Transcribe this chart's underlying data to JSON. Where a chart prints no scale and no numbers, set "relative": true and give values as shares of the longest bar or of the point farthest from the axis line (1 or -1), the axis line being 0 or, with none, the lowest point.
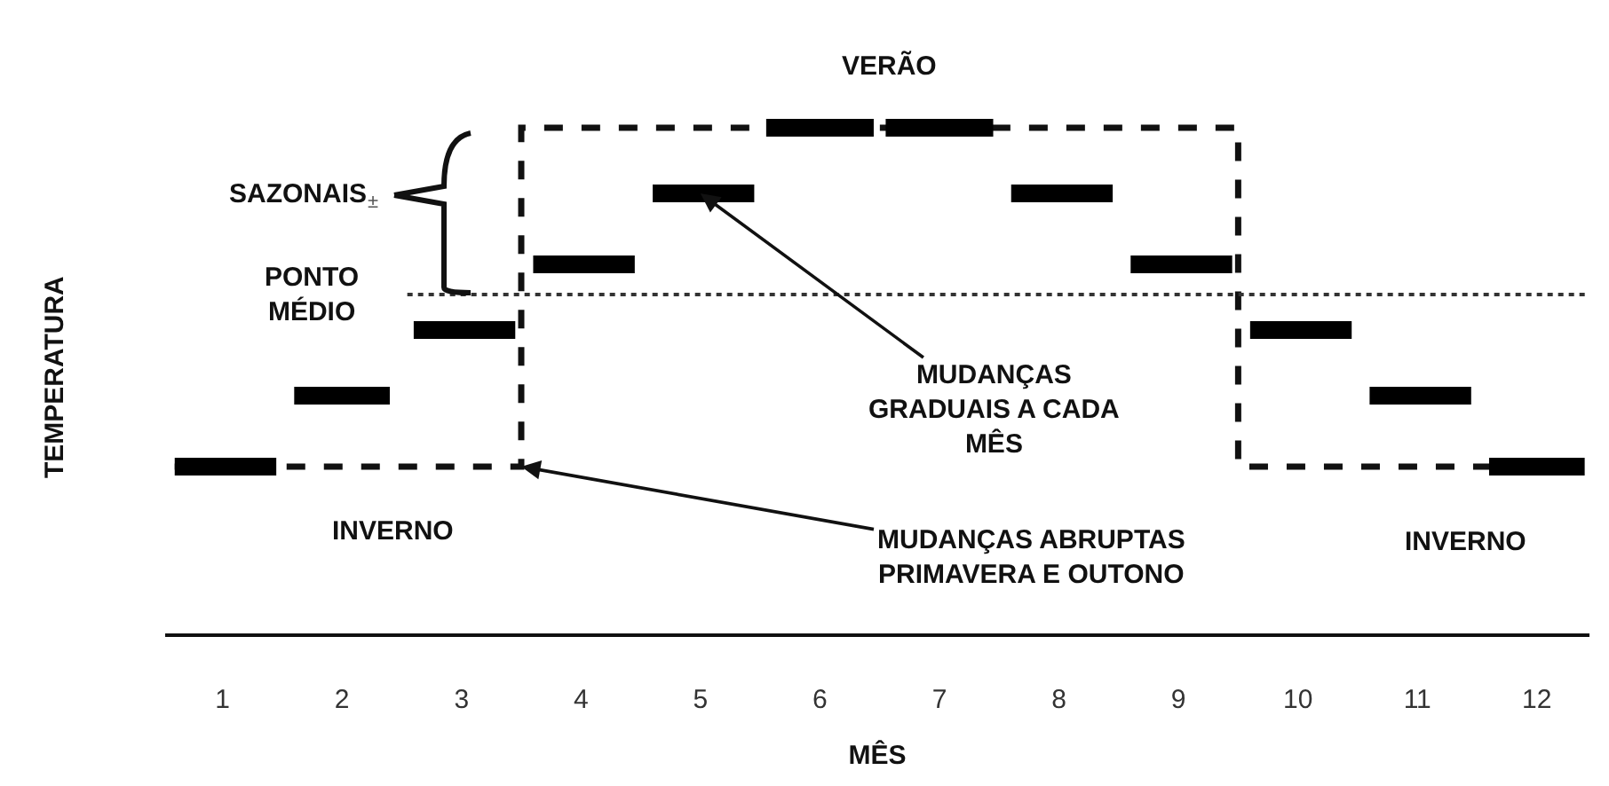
{
  "chart_data": {
    "type": "line",
    "relative": true,
    "xlabel": "MÊS",
    "ylabel": "TEMPERATURA",
    "xlim": [
      0.52,
      12.44
    ],
    "xticks": [
      1,
      2,
      3,
      4,
      5,
      6,
      7,
      8,
      9,
      10,
      11,
      12
    ],
    "tick_labels": "x",
    "series": [
      {
        "type": "step",
        "color": "#111111",
        "line_style": "dashed",
        "x": [
          0.6,
          3.5,
          9.5,
          12.4
        ],
        "values": [
          0.33,
          1,
          0.33,
          0.33
        ]
      },
      {
        "color": "#000000",
        "x": [
          0.6,
          1.45
        ],
        "values": [
          0.33,
          0.33
        ]
      },
      {
        "color": "#000000",
        "x": [
          1.6,
          2.4
        ],
        "values": [
          0.47,
          0.47
        ]
      },
      {
        "color": "#000000",
        "x": [
          2.6,
          3.45
        ],
        "values": [
          0.6,
          0.6
        ]
      },
      {
        "color": "#000000",
        "x": [
          3.6,
          4.45
        ],
        "values": [
          0.73,
          0.73
        ]
      },
      {
        "color": "#000000",
        "x": [
          4.6,
          5.45
        ],
        "values": [
          0.87,
          0.87
        ]
      },
      {
        "color": "#000000",
        "x": [
          5.55,
          6.45
        ],
        "values": [
          1,
          1
        ]
      },
      {
        "color": "#000000",
        "x": [
          6.55,
          7.45
        ],
        "values": [
          1,
          1
        ]
      },
      {
        "color": "#000000",
        "x": [
          7.6,
          8.45
        ],
        "values": [
          0.87,
          0.87
        ]
      },
      {
        "color": "#000000",
        "x": [
          8.6,
          9.45
        ],
        "values": [
          0.73,
          0.73
        ]
      },
      {
        "color": "#000000",
        "x": [
          9.6,
          10.45
        ],
        "values": [
          0.6,
          0.6
        ]
      },
      {
        "color": "#000000",
        "x": [
          10.6,
          11.45
        ],
        "values": [
          0.47,
          0.47
        ]
      },
      {
        "color": "#000000",
        "x": [
          11.6,
          12.4
        ],
        "values": [
          0.33,
          0.33
        ]
      }
    ],
    "ref_lines": [
      {
        "axis": "y",
        "value": 0.67,
        "label": "PONTO\nMÉDIO",
        "color": "#333333",
        "line_style": "dotted"
      }
    ],
    "annotations": [
      "VERÃO",
      "SAZONAIS",
      "±",
      "INVERNO",
      "INVERNO",
      {
        "text": "MUDANÇAS\nGRADUAIS A CADA\nMÊS",
        "x": 5,
        "y": 0.87
      },
      {
        "text": "MUDANÇAS ABRUPTAS\nPRIMAVERA E OUTONO",
        "x": 3.5,
        "y": 0.33
      }
    ]
  }
}
